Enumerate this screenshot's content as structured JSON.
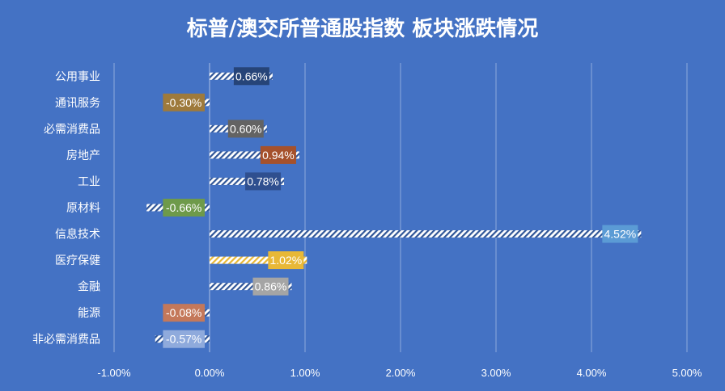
{
  "chart_data": {
    "type": "bar",
    "orientation": "horizontal",
    "title": "标普/澳交所普通股指数 板块涨跌情况",
    "xlabel": "",
    "ylabel": "",
    "xlim": [
      -1.0,
      5.0
    ],
    "x_ticks": [
      "-1.00%",
      "0.00%",
      "1.00%",
      "2.00%",
      "3.00%",
      "4.00%",
      "5.00%"
    ],
    "grid": "vertical",
    "legend": "none",
    "categories": [
      "公用事业",
      "通讯服务",
      "必需消费品",
      "房地产",
      "工业",
      "原材料",
      "信息技术",
      "医疗保健",
      "金融",
      "能源",
      "非必需消费品"
    ],
    "values": [
      0.66,
      -0.3,
      0.6,
      0.94,
      0.78,
      -0.66,
      4.52,
      1.02,
      0.86,
      -0.08,
      -0.57
    ],
    "labels": [
      "0.66%",
      "-0.30%",
      "0.60%",
      "0.94%",
      "0.78%",
      "-0.66%",
      "4.52%",
      "1.02%",
      "0.86%",
      "-0.08%",
      "-0.57%"
    ],
    "colors": [
      "#264478",
      "#9e7a3c",
      "#636363",
      "#a5512c",
      "#2f4f8f",
      "#6e9a4a",
      "#5b9bd5",
      "#e8b837",
      "#a5a5a5",
      "#c4785a",
      "#8faadc"
    ],
    "background": "#4472c4"
  }
}
